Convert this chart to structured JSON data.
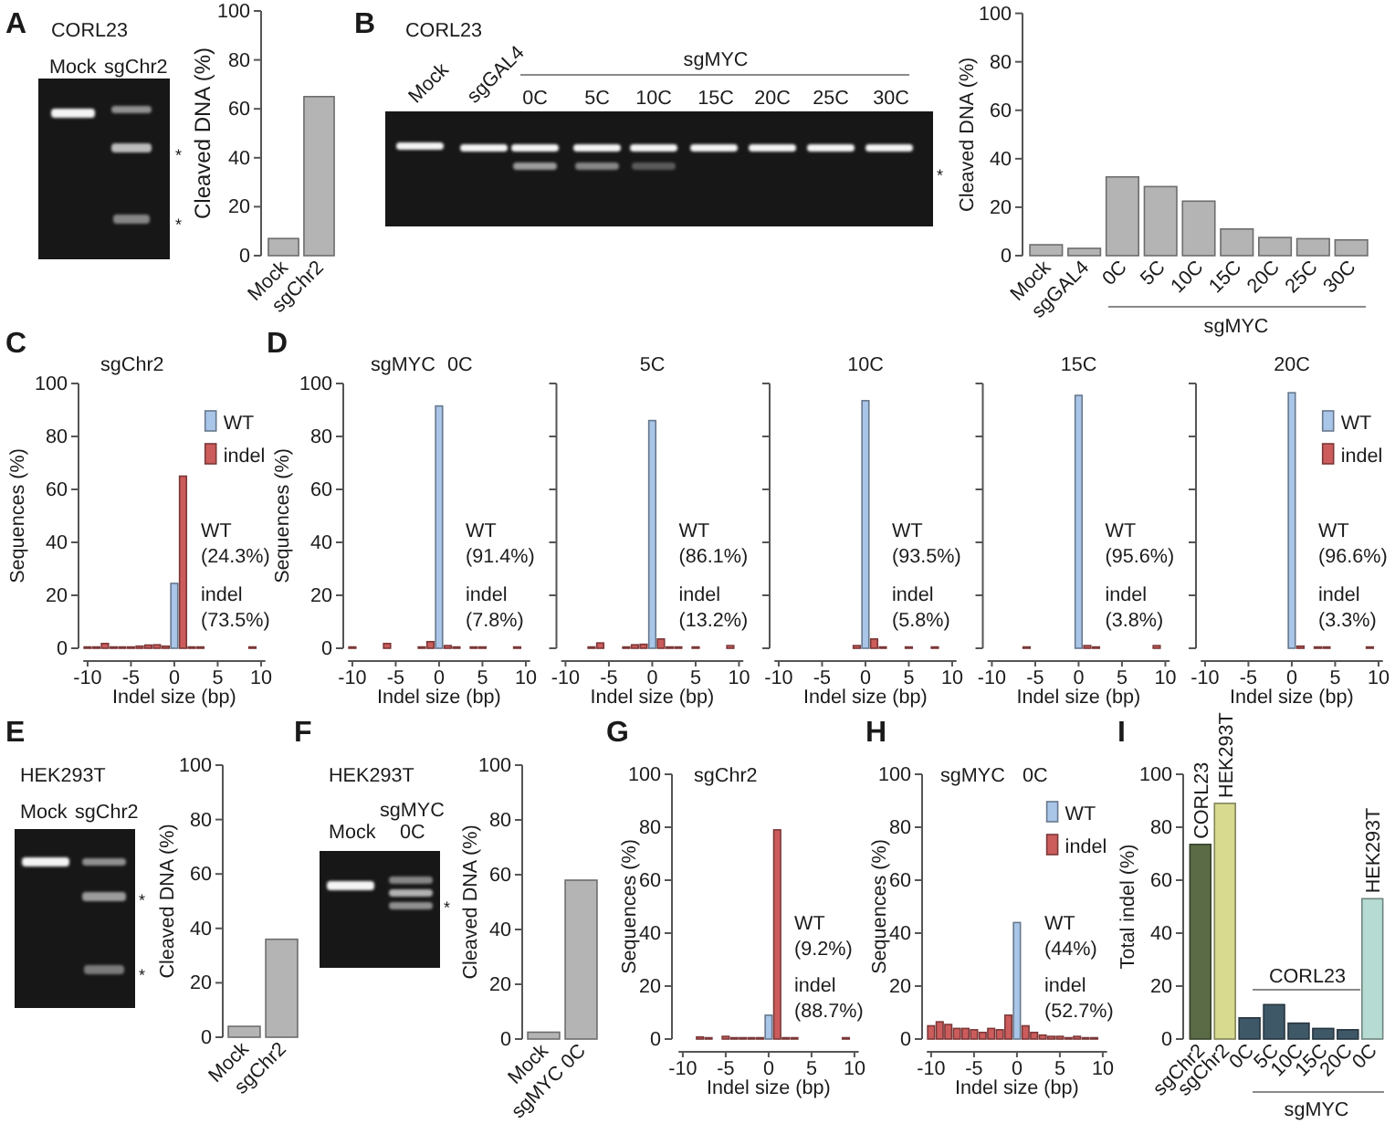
{
  "chart_data": [
    {
      "type": "bar",
      "ylabel": "Cleaved DNA (%)",
      "categories": [
        "Mock",
        "sgChr2"
      ],
      "values": [
        7,
        65
      ],
      "color": "#b4b4b4",
      "ylim": [
        0,
        100
      ],
      "yticks": [
        0,
        20,
        40,
        60,
        80,
        100
      ],
      "annotations": [
        "A",
        "CORL23",
        "Mock",
        "sgChr2",
        "*",
        "*"
      ]
    },
    {
      "type": "bar",
      "ylabel": "Cleaved DNA (%)",
      "categories": [
        "Mock",
        "sgGAL4",
        "0C",
        "5C",
        "10C",
        "15C",
        "20C",
        "25C",
        "30C"
      ],
      "values": [
        4.5,
        3,
        32.5,
        28.5,
        22.5,
        11,
        7.5,
        7,
        6.5
      ],
      "color": "#b4b4b4",
      "ylim": [
        0,
        100
      ],
      "yticks": [
        0,
        20,
        40,
        60,
        80,
        100
      ],
      "annotations": [
        "B",
        "CORL23",
        "Mock",
        "sgGAL4",
        "sgMYC",
        "0C",
        "5C",
        "10C",
        "15C",
        "20C",
        "25C",
        "30C",
        "*",
        "sgMYC"
      ]
    },
    {
      "type": "bar",
      "title": "sgChr2",
      "xlabel": "Indel size (bp)",
      "ylabel": "Sequences (%)",
      "series": [
        {
          "name": "WT",
          "color": "#a9c5e8",
          "x": [
            0
          ],
          "values": [
            24.5
          ]
        },
        {
          "name": "indel",
          "color": "#cc5c5c",
          "x": [
            -10,
            -9,
            -8,
            -7,
            -6,
            -5,
            -4,
            -3,
            -2,
            -1,
            1,
            2,
            3,
            9
          ],
          "values": [
            0.5,
            0.5,
            1.8,
            0.5,
            0.5,
            0.5,
            0.8,
            1.2,
            1.3,
            0.8,
            65,
            0.5,
            0.5,
            0.5
          ]
        }
      ],
      "xlim": [
        -10.5,
        10.5
      ],
      "xticks": [
        -10,
        -5,
        0,
        5,
        10
      ],
      "ylim": [
        0,
        100
      ],
      "yticks": [
        0,
        20,
        40,
        60,
        80,
        100
      ],
      "legend": "top right",
      "annotations": [
        "C",
        "WT\n(24.3%)",
        "indel\n(73.5%)"
      ]
    },
    {
      "type": "bar",
      "title": "0C",
      "xlabel": "Indel size (bp)",
      "ylabel": "Sequences (%)",
      "series": [
        {
          "color": "#a9c5e8",
          "x": [
            0
          ],
          "values": [
            91.5
          ]
        },
        {
          "color": "#cc5c5c",
          "x": [
            -10,
            -6,
            -2,
            -1,
            1,
            2,
            4,
            5,
            9
          ],
          "values": [
            0.5,
            1.8,
            0.5,
            2.5,
            1,
            0.5,
            0.5,
            0.5,
            0.5
          ]
        }
      ],
      "xlim": [
        -10.5,
        10.5
      ],
      "xticks": [
        -10,
        -5,
        0,
        5,
        10
      ],
      "ylim": [
        0,
        100
      ],
      "yticks": [
        0,
        20,
        40,
        60,
        80,
        100
      ],
      "annotations": [
        "D",
        "sgMYC",
        "WT\n(91.4%)",
        "indel\n(7.8%)"
      ]
    },
    {
      "type": "bar",
      "title": "5C",
      "xlabel": "Indel size (bp)",
      "series": [
        {
          "color": "#a9c5e8",
          "x": [
            0
          ],
          "values": [
            86
          ]
        },
        {
          "color": "#cc5c5c",
          "x": [
            -7,
            -6,
            -3,
            -2,
            -1,
            1,
            2,
            3,
            5,
            9
          ],
          "values": [
            0.5,
            2,
            0.5,
            1.3,
            1.5,
            3.5,
            0.5,
            0.5,
            0.5,
            1
          ]
        }
      ],
      "xlim": [
        -10.5,
        10.5
      ],
      "xticks": [
        -10,
        -5,
        0,
        5,
        10
      ],
      "ylim": [
        0,
        100
      ],
      "yticks": [
        0,
        20,
        40,
        60,
        80,
        100
      ],
      "tick_labels": "x",
      "annotations": [
        "WT\n(86.1%)",
        "indel\n(13.2%)"
      ]
    },
    {
      "type": "bar",
      "title": "10C",
      "xlabel": "Indel size (bp)",
      "series": [
        {
          "color": "#a9c5e8",
          "x": [
            0
          ],
          "values": [
            93.5
          ]
        },
        {
          "color": "#cc5c5c",
          "x": [
            -1,
            1,
            2,
            5,
            8
          ],
          "values": [
            1,
            3.5,
            0.5,
            0.5,
            0.5
          ]
        }
      ],
      "xlim": [
        -10.5,
        10.5
      ],
      "xticks": [
        -10,
        -5,
        0,
        5,
        10
      ],
      "ylim": [
        0,
        100
      ],
      "yticks": [
        0,
        20,
        40,
        60,
        80,
        100
      ],
      "tick_labels": "x",
      "annotations": [
        "WT\n(93.5%)",
        "indel\n(5.8%)"
      ]
    },
    {
      "type": "bar",
      "title": "15C",
      "xlabel": "Indel size (bp)",
      "series": [
        {
          "color": "#a9c5e8",
          "x": [
            0
          ],
          "values": [
            95.5
          ]
        },
        {
          "color": "#cc5c5c",
          "x": [
            -6,
            1,
            2,
            9
          ],
          "values": [
            0.5,
            1,
            0.5,
            1
          ]
        }
      ],
      "xlim": [
        -10.5,
        10.5
      ],
      "xticks": [
        -10,
        -5,
        0,
        5,
        10
      ],
      "ylim": [
        0,
        100
      ],
      "yticks": [
        0,
        20,
        40,
        60,
        80,
        100
      ],
      "tick_labels": "x",
      "annotations": [
        "WT\n(95.6%)",
        "indel\n(3.8%)"
      ]
    },
    {
      "type": "bar",
      "title": "20C",
      "xlabel": "Indel size (bp)",
      "series": [
        {
          "name": "WT",
          "color": "#a9c5e8",
          "x": [
            0
          ],
          "values": [
            96.5
          ]
        },
        {
          "name": "indel",
          "color": "#cc5c5c",
          "x": [
            1,
            3,
            4,
            9
          ],
          "values": [
            0.8,
            0.5,
            0.5,
            0.5
          ]
        }
      ],
      "xlim": [
        -10.5,
        10.5
      ],
      "xticks": [
        -10,
        -5,
        0,
        5,
        10
      ],
      "ylim": [
        0,
        100
      ],
      "yticks": [
        0,
        20,
        40,
        60,
        80,
        100
      ],
      "tick_labels": "x",
      "legend": "top right",
      "annotations": [
        "WT\n(96.6%)",
        "indel\n(3.3%)"
      ]
    },
    {
      "type": "bar",
      "ylabel": "Cleaved DNA (%)",
      "categories": [
        "Mock",
        "sgChr2"
      ],
      "values": [
        4,
        36
      ],
      "color": "#b4b4b4",
      "ylim": [
        0,
        100
      ],
      "yticks": [
        0,
        20,
        40,
        60,
        80,
        100
      ],
      "annotations": [
        "E",
        "HEK293T",
        "Mock",
        "sgChr2",
        "*",
        "*"
      ]
    },
    {
      "type": "bar",
      "ylabel": "Cleaved DNA (%)",
      "categories": [
        "Mock",
        "sgMYC 0C"
      ],
      "values": [
        2.5,
        58
      ],
      "color": "#b4b4b4",
      "ylim": [
        0,
        100
      ],
      "yticks": [
        0,
        20,
        40,
        60,
        80,
        100
      ],
      "annotations": [
        "F",
        "HEK293T",
        "Mock",
        "sgMYC",
        "0C",
        "*"
      ]
    },
    {
      "type": "bar",
      "title": "sgChr2",
      "xlabel": "Indel size (bp)",
      "ylabel": "Sequences (%)",
      "series": [
        {
          "color": "#a9c5e8",
          "x": [
            0
          ],
          "values": [
            9
          ]
        },
        {
          "color": "#cc5c5c",
          "x": [
            -8,
            -7,
            -5,
            -4,
            -3,
            -2,
            -1,
            1,
            2,
            3,
            9
          ],
          "values": [
            0.8,
            0.5,
            1,
            0.5,
            0.5,
            0.5,
            0.5,
            79,
            0.5,
            0.5,
            0.5
          ]
        }
      ],
      "xlim": [
        -10.5,
        10.5
      ],
      "xticks": [
        -10,
        -5,
        0,
        5,
        10
      ],
      "ylim": [
        0,
        100
      ],
      "yticks": [
        0,
        20,
        40,
        60,
        80,
        100
      ],
      "annotations": [
        "G",
        "WT\n(9.2%)",
        "indel\n(88.7%)"
      ]
    },
    {
      "type": "bar",
      "title": "0C",
      "xlabel": "Indel size (bp)",
      "ylabel": "Sequences (%)",
      "series": [
        {
          "name": "WT",
          "color": "#a9c5e8",
          "x": [
            0
          ],
          "values": [
            44
          ]
        },
        {
          "name": "indel",
          "color": "#cc5c5c",
          "x": [
            -10,
            -9,
            -8,
            -7,
            -6,
            -5,
            -4,
            -3,
            -2,
            -1,
            1,
            2,
            3,
            4,
            5,
            6,
            7,
            8,
            9
          ],
          "values": [
            5,
            6.5,
            5.5,
            4,
            4,
            3.5,
            2.5,
            4,
            3.5,
            9,
            5,
            2.5,
            1.5,
            1,
            1,
            0.5,
            1,
            0.5,
            0.5
          ]
        }
      ],
      "xlim": [
        -10.5,
        10.5
      ],
      "xticks": [
        -10,
        -5,
        0,
        5,
        10
      ],
      "ylim": [
        0,
        100
      ],
      "yticks": [
        0,
        20,
        40,
        60,
        80,
        100
      ],
      "legend": "top right",
      "annotations": [
        "H",
        "sgMYC",
        "WT\n(44%)",
        "indel\n(52.7%)"
      ]
    },
    {
      "type": "bar",
      "ylabel": "Total indel (%)",
      "categories": [
        "sgChr2",
        "sgChr2",
        "0C",
        "5C",
        "10C",
        "15C",
        "20C",
        "0C"
      ],
      "values": [
        73.5,
        89,
        8,
        13,
        6,
        4,
        3.5,
        53
      ],
      "colors": [
        "#5b6b45",
        "#d7da8f",
        "#3f5868",
        "#3f5868",
        "#3f5868",
        "#3f5868",
        "#3f5868",
        "#b6dbd2"
      ],
      "ylim": [
        0,
        100
      ],
      "yticks": [
        0,
        20,
        40,
        60,
        80,
        100
      ],
      "annotations": [
        "I",
        "CORL23",
        "HEK293T",
        "CORL23",
        "HEK293T",
        "sgMYC"
      ]
    }
  ]
}
